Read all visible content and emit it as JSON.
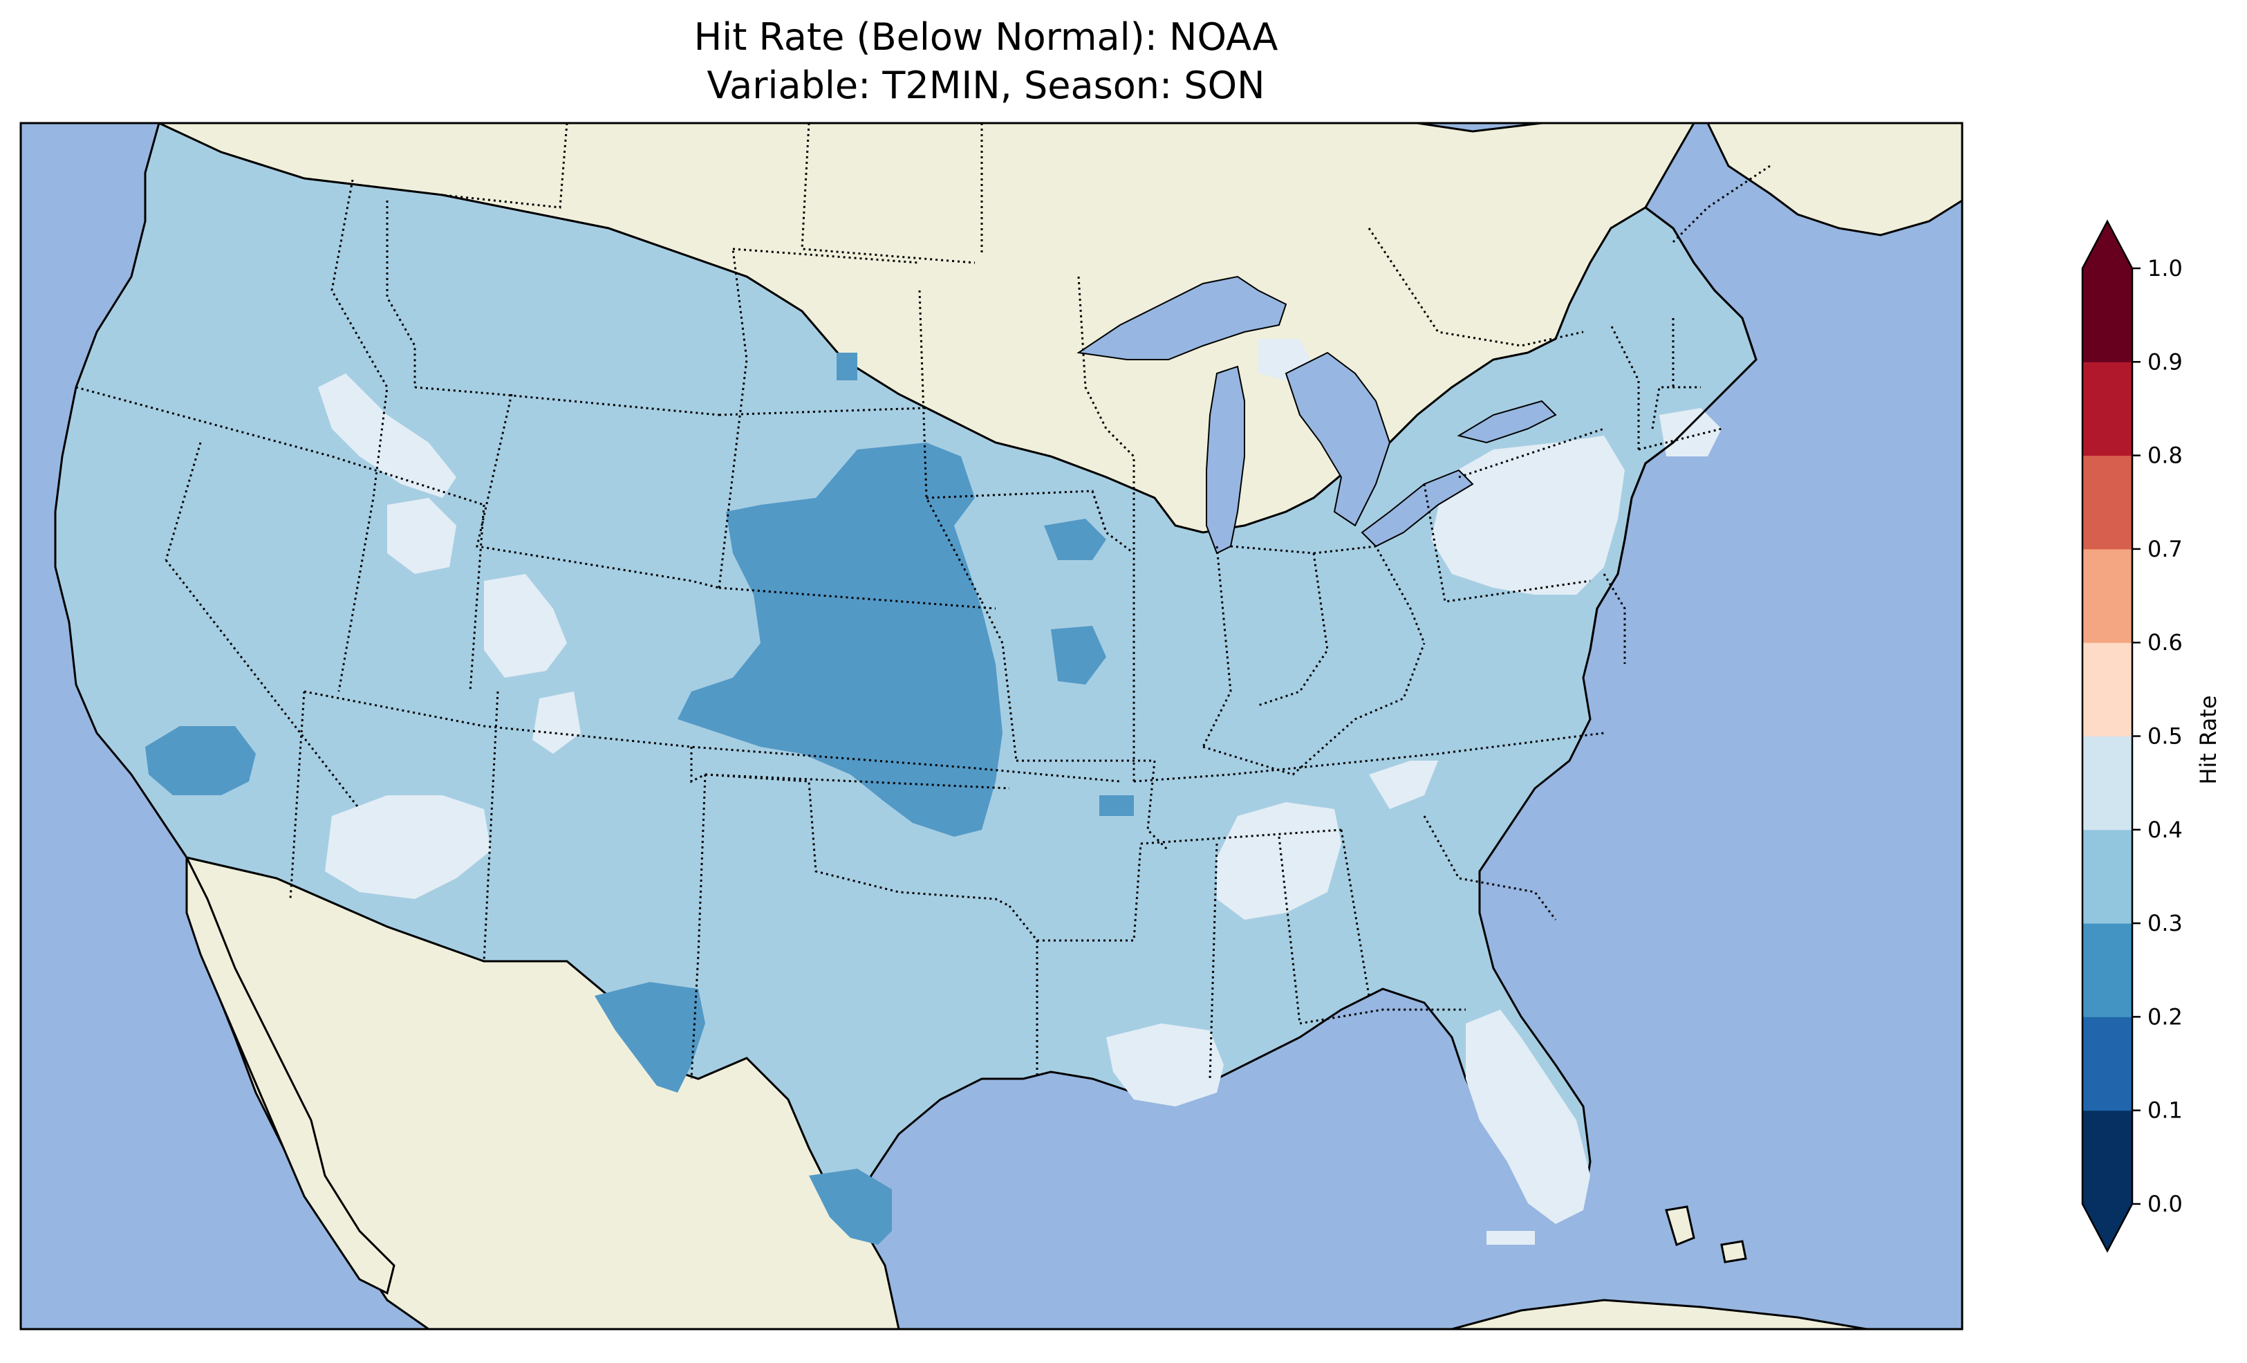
{
  "title": {
    "line1": "Hit Rate (Below Normal): NOAA",
    "line2": "Variable: T2MIN, Season: SON"
  },
  "colorbar": {
    "label": "Hit Rate",
    "ticks": [
      "0.0",
      "0.1",
      "0.2",
      "0.3",
      "0.4",
      "0.5",
      "0.6",
      "0.7",
      "0.8",
      "0.9",
      "1.0"
    ],
    "bin_colors": [
      "#053061",
      "#2166ac",
      "#4393c3",
      "#92c5de",
      "#d1e5f0",
      "#fddbc7",
      "#f4a582",
      "#d6604d",
      "#b2182b",
      "#67001f"
    ],
    "extend_under_color": "#053061",
    "extend_over_color": "#67001f"
  },
  "map": {
    "ocean_color": "#97b6e1",
    "land_color": "#efefdb",
    "dominant_class_color": "#a6cee3",
    "low_class_color": "#5399c6",
    "high_class_color": "#e3edf5",
    "regions_hit_rate_below_0_3": [
      "Nebraska-Kansas",
      "Southern California",
      "West Texas",
      "South Texas",
      "Oklahoma",
      "Missouri",
      "Iowa"
    ],
    "regions_hit_rate_0_4_to_0_5": [
      "Florida",
      "Pennsylvania-New Jersey",
      "Mississippi-Alabama",
      "Louisiana",
      "Arizona",
      "Idaho",
      "Utah",
      "Michigan UP",
      "Massachusetts"
    ]
  }
}
